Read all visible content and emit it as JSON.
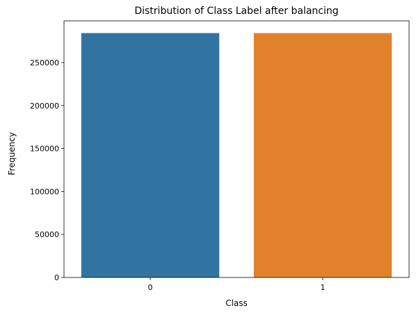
{
  "chart_data": {
    "type": "bar",
    "title": "Distribution of Class Label after balancing",
    "xlabel": "Class",
    "ylabel": "Frequency",
    "categories": [
      "0",
      "1"
    ],
    "values": [
      284315,
      284315
    ],
    "colors": [
      "#3274a1",
      "#e1812c"
    ],
    "ylim": [
      0,
      298530
    ],
    "yticks": [
      0,
      50000,
      100000,
      150000,
      200000,
      250000
    ],
    "ytick_labels": [
      "0",
      "50000",
      "100000",
      "150000",
      "200000",
      "250000"
    ],
    "grid": false,
    "legend": "none"
  }
}
